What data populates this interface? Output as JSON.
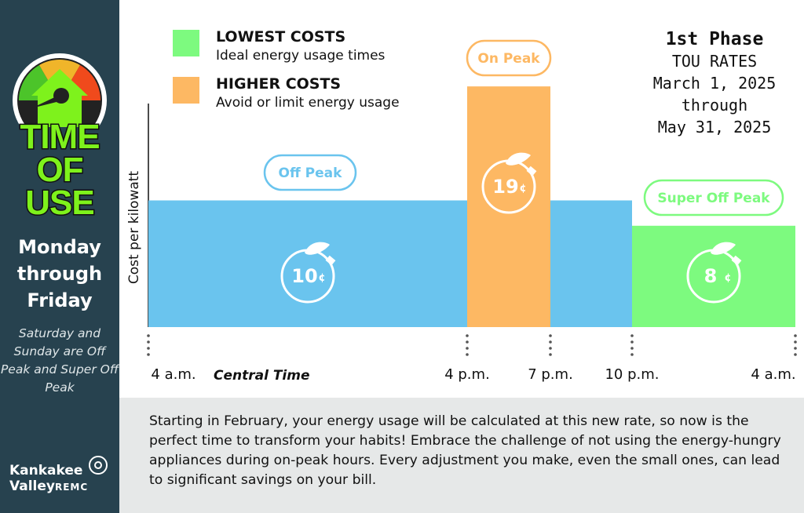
{
  "sidebar": {
    "logo_text": [
      "TIME",
      "OF",
      "USE"
    ],
    "days": "Monday through Friday",
    "weekend_note": "Saturday and Sunday are Off Peak and Super Off Peak",
    "brand_line1": "Kankakee",
    "brand_line2": "Valley",
    "brand_suffix": "REMC"
  },
  "legend": [
    {
      "title": "LOWEST COSTS",
      "subtitle": "Ideal energy usage times",
      "color": "#7dfa7f"
    },
    {
      "title": "HIGHER COSTS",
      "subtitle": "Avoid or limit energy usage",
      "color": "#fdb863"
    }
  ],
  "phase": {
    "line1": "1st Phase",
    "line2": "TOU RATES",
    "line3": "March 1, 2025",
    "line4": "through",
    "line5": "May 31, 2025"
  },
  "timezone_label": "Central Time",
  "footer": "Starting in February, your energy usage will be calculated at this new rate, so now is the perfect time to transform your habits! Embrace the challenge of not using the energy-hungry appliances during on-peak hours. Every adjustment you make, even the small ones, can lead to significant savings on your bill.",
  "chart_data": {
    "type": "bar",
    "ylabel": "Cost per kilowatt",
    "xlabel": "",
    "unit": "¢",
    "tick_labels": [
      "4 a.m.",
      "4 p.m.",
      "7 p.m.",
      "10 p.m.",
      "4 a.m."
    ],
    "tick_hours": [
      4,
      16,
      19,
      22,
      28
    ],
    "segments": [
      {
        "name": "Off Peak",
        "start": "4 a.m.",
        "end": "4 p.m.",
        "start_hour": 4,
        "end_hour": 16,
        "value": 10,
        "color": "#6ac4ee",
        "label": "10"
      },
      {
        "name": "On Peak",
        "start": "4 p.m.",
        "end": "7 p.m.",
        "start_hour": 16,
        "end_hour": 19,
        "value": 19,
        "color": "#fdb863",
        "label": "19"
      },
      {
        "name": "Off Peak",
        "start": "7 p.m.",
        "end": "10 p.m.",
        "start_hour": 19,
        "end_hour": 22,
        "value": 10,
        "color": "#6ac4ee",
        "label": ""
      },
      {
        "name": "Super Off Peak",
        "start": "10 p.m.",
        "end": "4 a.m.",
        "start_hour": 22,
        "end_hour": 28,
        "value": 8,
        "color": "#7dfa7f",
        "label": "8"
      }
    ],
    "badges": [
      {
        "text": "Off Peak",
        "color": "#6ac4ee",
        "segment": 0
      },
      {
        "text": "On Peak",
        "color": "#fdb863",
        "segment": 1
      },
      {
        "text": "Super Off Peak",
        "color": "#7dfa7f",
        "segment": 3
      }
    ],
    "ylim": [
      0,
      19
    ],
    "grid": false
  }
}
